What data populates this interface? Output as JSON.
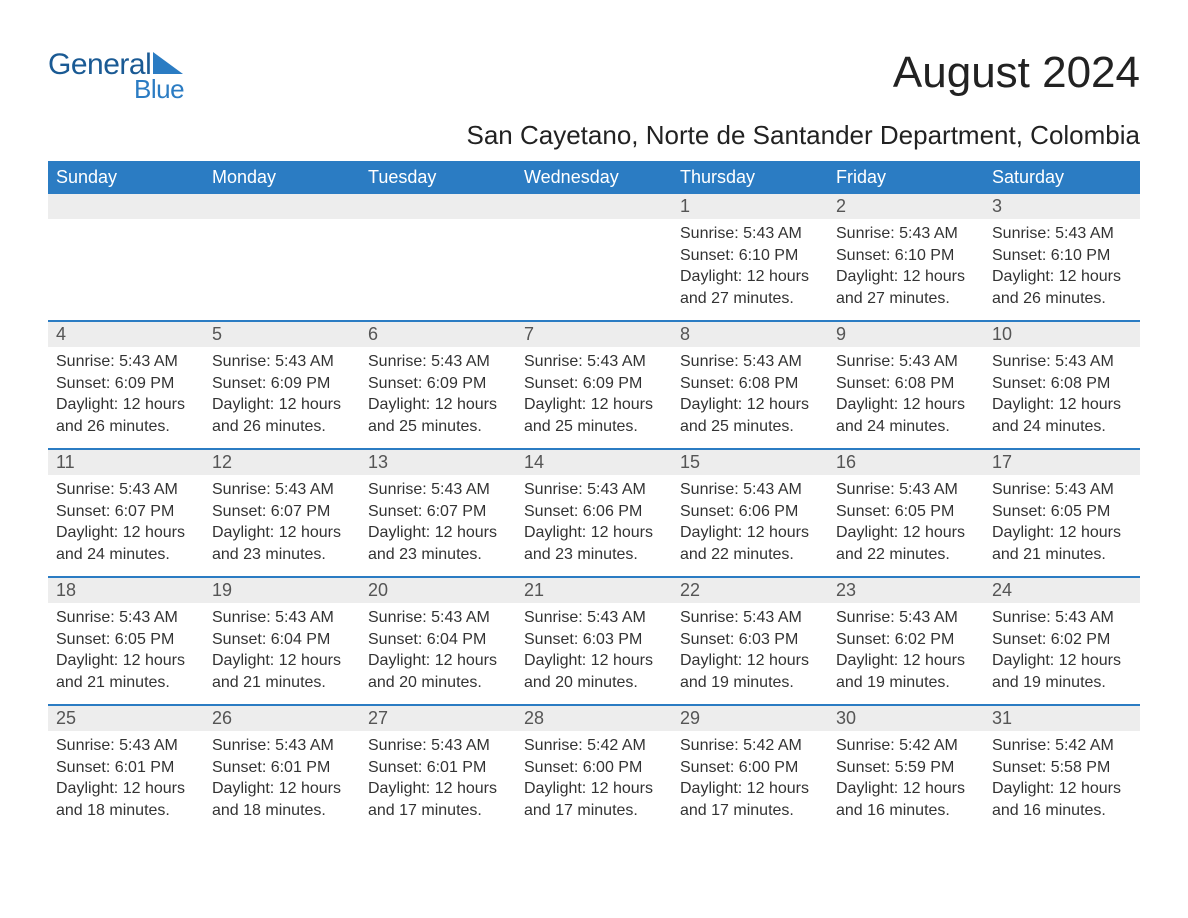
{
  "brand": {
    "word1": "General",
    "word2": "Blue",
    "logo_color_dark": "#1a5a94",
    "logo_color_light": "#2b7cc3"
  },
  "header": {
    "month_title": "August 2024",
    "location": "San Cayetano, Norte de Santander Department, Colombia"
  },
  "colors": {
    "header_bg": "#2b7cc3",
    "header_text": "#ffffff",
    "daynum_bg": "#ededed",
    "border": "#2b7cc3",
    "body_text": "#333333",
    "page_bg": "#ffffff"
  },
  "typography": {
    "title_fontsize_pt": 33,
    "location_fontsize_pt": 20,
    "dow_fontsize_pt": 14,
    "daynum_fontsize_pt": 14,
    "body_fontsize_pt": 12
  },
  "calendar": {
    "type": "table",
    "columns": [
      "Sunday",
      "Monday",
      "Tuesday",
      "Wednesday",
      "Thursday",
      "Friday",
      "Saturday"
    ],
    "weeks": [
      [
        {
          "day": "",
          "sunrise": "",
          "sunset": "",
          "daylight": ""
        },
        {
          "day": "",
          "sunrise": "",
          "sunset": "",
          "daylight": ""
        },
        {
          "day": "",
          "sunrise": "",
          "sunset": "",
          "daylight": ""
        },
        {
          "day": "",
          "sunrise": "",
          "sunset": "",
          "daylight": ""
        },
        {
          "day": "1",
          "sunrise": "Sunrise: 5:43 AM",
          "sunset": "Sunset: 6:10 PM",
          "daylight": "Daylight: 12 hours and 27 minutes."
        },
        {
          "day": "2",
          "sunrise": "Sunrise: 5:43 AM",
          "sunset": "Sunset: 6:10 PM",
          "daylight": "Daylight: 12 hours and 27 minutes."
        },
        {
          "day": "3",
          "sunrise": "Sunrise: 5:43 AM",
          "sunset": "Sunset: 6:10 PM",
          "daylight": "Daylight: 12 hours and 26 minutes."
        }
      ],
      [
        {
          "day": "4",
          "sunrise": "Sunrise: 5:43 AM",
          "sunset": "Sunset: 6:09 PM",
          "daylight": "Daylight: 12 hours and 26 minutes."
        },
        {
          "day": "5",
          "sunrise": "Sunrise: 5:43 AM",
          "sunset": "Sunset: 6:09 PM",
          "daylight": "Daylight: 12 hours and 26 minutes."
        },
        {
          "day": "6",
          "sunrise": "Sunrise: 5:43 AM",
          "sunset": "Sunset: 6:09 PM",
          "daylight": "Daylight: 12 hours and 25 minutes."
        },
        {
          "day": "7",
          "sunrise": "Sunrise: 5:43 AM",
          "sunset": "Sunset: 6:09 PM",
          "daylight": "Daylight: 12 hours and 25 minutes."
        },
        {
          "day": "8",
          "sunrise": "Sunrise: 5:43 AM",
          "sunset": "Sunset: 6:08 PM",
          "daylight": "Daylight: 12 hours and 25 minutes."
        },
        {
          "day": "9",
          "sunrise": "Sunrise: 5:43 AM",
          "sunset": "Sunset: 6:08 PM",
          "daylight": "Daylight: 12 hours and 24 minutes."
        },
        {
          "day": "10",
          "sunrise": "Sunrise: 5:43 AM",
          "sunset": "Sunset: 6:08 PM",
          "daylight": "Daylight: 12 hours and 24 minutes."
        }
      ],
      [
        {
          "day": "11",
          "sunrise": "Sunrise: 5:43 AM",
          "sunset": "Sunset: 6:07 PM",
          "daylight": "Daylight: 12 hours and 24 minutes."
        },
        {
          "day": "12",
          "sunrise": "Sunrise: 5:43 AM",
          "sunset": "Sunset: 6:07 PM",
          "daylight": "Daylight: 12 hours and 23 minutes."
        },
        {
          "day": "13",
          "sunrise": "Sunrise: 5:43 AM",
          "sunset": "Sunset: 6:07 PM",
          "daylight": "Daylight: 12 hours and 23 minutes."
        },
        {
          "day": "14",
          "sunrise": "Sunrise: 5:43 AM",
          "sunset": "Sunset: 6:06 PM",
          "daylight": "Daylight: 12 hours and 23 minutes."
        },
        {
          "day": "15",
          "sunrise": "Sunrise: 5:43 AM",
          "sunset": "Sunset: 6:06 PM",
          "daylight": "Daylight: 12 hours and 22 minutes."
        },
        {
          "day": "16",
          "sunrise": "Sunrise: 5:43 AM",
          "sunset": "Sunset: 6:05 PM",
          "daylight": "Daylight: 12 hours and 22 minutes."
        },
        {
          "day": "17",
          "sunrise": "Sunrise: 5:43 AM",
          "sunset": "Sunset: 6:05 PM",
          "daylight": "Daylight: 12 hours and 21 minutes."
        }
      ],
      [
        {
          "day": "18",
          "sunrise": "Sunrise: 5:43 AM",
          "sunset": "Sunset: 6:05 PM",
          "daylight": "Daylight: 12 hours and 21 minutes."
        },
        {
          "day": "19",
          "sunrise": "Sunrise: 5:43 AM",
          "sunset": "Sunset: 6:04 PM",
          "daylight": "Daylight: 12 hours and 21 minutes."
        },
        {
          "day": "20",
          "sunrise": "Sunrise: 5:43 AM",
          "sunset": "Sunset: 6:04 PM",
          "daylight": "Daylight: 12 hours and 20 minutes."
        },
        {
          "day": "21",
          "sunrise": "Sunrise: 5:43 AM",
          "sunset": "Sunset: 6:03 PM",
          "daylight": "Daylight: 12 hours and 20 minutes."
        },
        {
          "day": "22",
          "sunrise": "Sunrise: 5:43 AM",
          "sunset": "Sunset: 6:03 PM",
          "daylight": "Daylight: 12 hours and 19 minutes."
        },
        {
          "day": "23",
          "sunrise": "Sunrise: 5:43 AM",
          "sunset": "Sunset: 6:02 PM",
          "daylight": "Daylight: 12 hours and 19 minutes."
        },
        {
          "day": "24",
          "sunrise": "Sunrise: 5:43 AM",
          "sunset": "Sunset: 6:02 PM",
          "daylight": "Daylight: 12 hours and 19 minutes."
        }
      ],
      [
        {
          "day": "25",
          "sunrise": "Sunrise: 5:43 AM",
          "sunset": "Sunset: 6:01 PM",
          "daylight": "Daylight: 12 hours and 18 minutes."
        },
        {
          "day": "26",
          "sunrise": "Sunrise: 5:43 AM",
          "sunset": "Sunset: 6:01 PM",
          "daylight": "Daylight: 12 hours and 18 minutes."
        },
        {
          "day": "27",
          "sunrise": "Sunrise: 5:43 AM",
          "sunset": "Sunset: 6:01 PM",
          "daylight": "Daylight: 12 hours and 17 minutes."
        },
        {
          "day": "28",
          "sunrise": "Sunrise: 5:42 AM",
          "sunset": "Sunset: 6:00 PM",
          "daylight": "Daylight: 12 hours and 17 minutes."
        },
        {
          "day": "29",
          "sunrise": "Sunrise: 5:42 AM",
          "sunset": "Sunset: 6:00 PM",
          "daylight": "Daylight: 12 hours and 17 minutes."
        },
        {
          "day": "30",
          "sunrise": "Sunrise: 5:42 AM",
          "sunset": "Sunset: 5:59 PM",
          "daylight": "Daylight: 12 hours and 16 minutes."
        },
        {
          "day": "31",
          "sunrise": "Sunrise: 5:42 AM",
          "sunset": "Sunset: 5:58 PM",
          "daylight": "Daylight: 12 hours and 16 minutes."
        }
      ]
    ]
  }
}
